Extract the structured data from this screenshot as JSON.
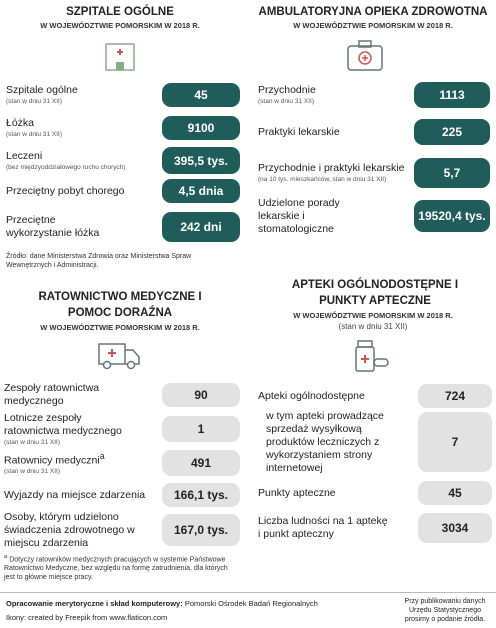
{
  "sections": [
    {
      "title": "SZPITALE OGÓLNE",
      "subtitle": "W WOJEWÓDZTWIE POMORSKIM W 2018 R.",
      "rows": [
        {
          "label": "Szpitale ogólne",
          "note": "(stan w dniu 31 XII)",
          "value": "45"
        },
        {
          "label": "Łóżka",
          "note": "(stan w dniu 31 XII)",
          "value": "9100"
        },
        {
          "label": "Leczeni",
          "note": "(bez międzyoddziałowego ruchu chorych)",
          "value": "395,5 tys."
        },
        {
          "label": "Przeciętny pobyt chorego",
          "value": "4,5 dnia"
        },
        {
          "label": "Przeciętne wykorzystanie łóżka",
          "value": "242 dni"
        }
      ],
      "source": "Źródło: dane Ministerstwa Zdrowia oraz Ministerstwa Spraw Wewnętrznych i Administracji."
    },
    {
      "title": "AMBULATORYJNA OPIEKA ZDROWOTNA",
      "subtitle": "W WOJEWÓDZTWIE POMORSKIM W 2018 R.",
      "rows": [
        {
          "label": "Przychodnie",
          "note": "(stan w dniu 31 XII)",
          "value": "1113"
        },
        {
          "label": "Praktyki lekarskie",
          "value": "225"
        },
        {
          "label": "Przychodnie i praktyki lekarskie",
          "note": "(na 10 tys. mieszkańców, stan w dniu 31 XII)",
          "value": "5,7"
        },
        {
          "label": "Udzielone porady lekarskie i stomatologiczne",
          "value": "19520,4 tys."
        }
      ]
    },
    {
      "title": "RATOWNICTWO MEDYCZNE I POMOC DORAŹNA",
      "subtitle": "W WOJEWÓDZTWIE POMORSKIM W 2018 R.",
      "rows": [
        {
          "label": "Zespoły ratownictwa medycznego",
          "value": "90"
        },
        {
          "label": "Lotnicze zespoły ratownictwa medycznego",
          "note": "(stan w dniu 31 XII)",
          "value": "1"
        },
        {
          "label": "Ratownicy medyczni",
          "mark": "a",
          "note": "(stan w dniu 31 XII)",
          "value": "491"
        },
        {
          "label": "Wyjazdy na miejsce zdarzenia",
          "value": "166,1 tys."
        },
        {
          "label": "Osoby, którym udzielono świadczenia zdrowotnego w miejscu zdarzenia",
          "value": "167,0 tys."
        }
      ],
      "footnote": {
        "mark": "a",
        "text": "Dotyczy ratowników medycznych pracujących w systemie Państwowe Ratownictwo Medyczne, bez względu na formę zatrudnienia, dla których jest to główne miejsce pracy."
      }
    },
    {
      "title": "APTEKI OGÓLNODOSTĘPNE I PUNKTY APTECZNE",
      "subtitle": "W WOJEWÓDZTWIE POMORSKIM W 2018 R.",
      "note": "(stan w dniu 31 XII)",
      "rows": [
        {
          "label": "Apteki ogólnodostępne",
          "value": "724"
        },
        {
          "label": "w tym apteki prowadzące sprzedaż wysyłkową produktów leczniczych z wykorzystaniem strony internetowej",
          "value": "7"
        },
        {
          "label": "Punkty apteczne",
          "value": "45"
        },
        {
          "label": "Liczba ludności na 1 aptekę i punkt apteczny",
          "value": "3034"
        }
      ]
    }
  ],
  "footer": {
    "credit_label": "Opracowanie merytoryczne i skład komputerowy:",
    "credit": "Pomorski Ośrodek Badań Regionalnych",
    "icons": "Ikony: created by Freepik from www.flaticon.com",
    "notice": "Przy publikowaniu danych Urzędu Statystycznego prosimy o podanie źródła."
  }
}
